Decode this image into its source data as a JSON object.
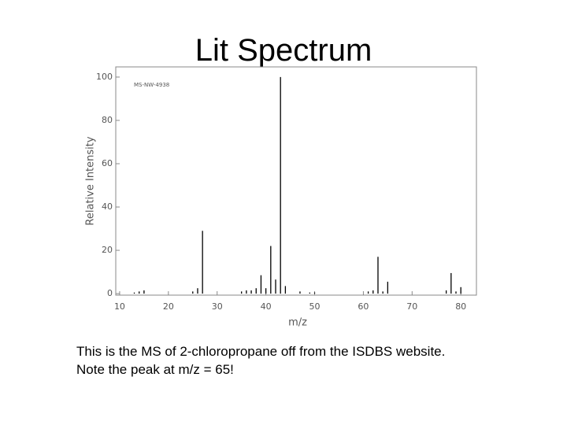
{
  "slide": {
    "title": "Lit Spectrum",
    "caption": [
      "This is the MS of 2-chloropropane off from the ISDBS website.",
      "Note the peak at m/z = 65!"
    ]
  },
  "chart_data": {
    "type": "stem",
    "annotation": "MS-NW-4938",
    "x_label": "m/z",
    "y_label": "Relative Intensity",
    "x": [
      13,
      14,
      15,
      25,
      26,
      27,
      35,
      36,
      37,
      38,
      39,
      40,
      41,
      42,
      43,
      44,
      47,
      49,
      50,
      61,
      62,
      63,
      64,
      65,
      77,
      78,
      79,
      80
    ],
    "values": [
      0.5,
      1,
      1.5,
      1,
      2.5,
      29,
      1,
      1.5,
      1.5,
      2.5,
      8.5,
      2.5,
      22,
      6.5,
      100,
      3.5,
      1,
      0.5,
      0.5,
      1,
      1.5,
      17,
      1,
      5.5,
      1.5,
      9.5,
      1,
      3
    ],
    "color": "#000000",
    "xlim": [
      9.2,
      83.2
    ],
    "ylim": [
      -0.7,
      104.7
    ],
    "xticks": [
      10,
      20,
      30,
      40,
      50,
      60,
      70,
      80
    ],
    "yticks": [
      0,
      20,
      40,
      60,
      80,
      100
    ]
  }
}
